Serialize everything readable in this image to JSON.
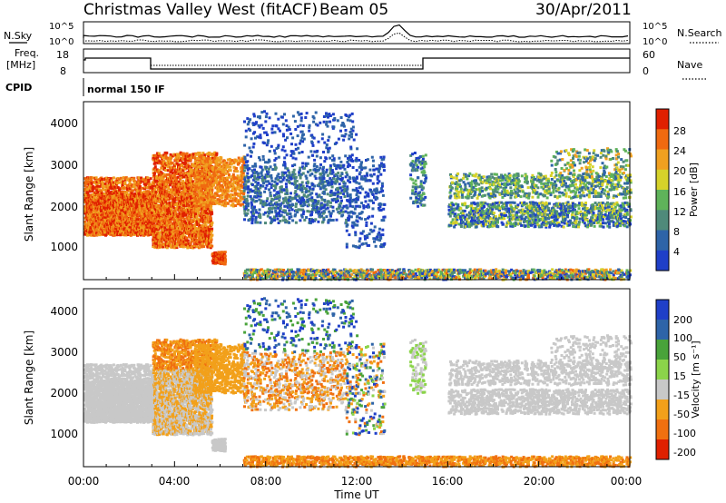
{
  "header": {
    "title": "Christmas Valley West (fitACF)",
    "beam": "Beam 05",
    "date": "30/Apr/2011"
  },
  "top_panels": {
    "nsky_label": "N.Sky",
    "nsearch_label": "N.Search",
    "noise_ticks": [
      "10^5",
      "10^0"
    ],
    "freq_label_1": "Freq.",
    "freq_label_2": "[MHz]",
    "freq_ticks": [
      "18",
      "8"
    ],
    "nave_label": "Nave",
    "nave_ticks": [
      "60",
      "0"
    ],
    "cpid_label": "CPID",
    "cpid_value": "normal 150 IF"
  },
  "colors": {
    "power_scale": [
      "#1f3fc8",
      "#2e64a8",
      "#4f8a7a",
      "#5fb35a",
      "#d6d22a",
      "#f0a020",
      "#f06a10",
      "#e02000"
    ],
    "velocity_scale": [
      "#1f3fc8",
      "#2e64a8",
      "#49a33a",
      "#8bd44a",
      "#c8c8c8",
      "#f2a01a",
      "#f07010",
      "#e02000"
    ]
  },
  "chart_data": [
    {
      "type": "heatmap",
      "name": "power-panel",
      "ylabel": "Slant Range [km]",
      "yticks": [
        "4000",
        "3000",
        "2000",
        "1000"
      ],
      "ylim": [
        200,
        4500
      ],
      "xlim_hours": [
        0,
        24
      ],
      "colorbar_label": "Power [dB]",
      "colorbar_ticks": [
        "28",
        "24",
        "20",
        "16",
        "12",
        "8",
        "4"
      ],
      "colorbar_range": [
        0,
        32
      ]
    },
    {
      "type": "heatmap",
      "name": "velocity-panel",
      "ylabel": "Slant Range [km]",
      "yticks": [
        "4000",
        "3000",
        "2000",
        "1000"
      ],
      "ylim": [
        200,
        4500
      ],
      "xlim_hours": [
        0,
        24
      ],
      "colorbar_label": "Velocity [m s⁻¹]",
      "colorbar_ticks": [
        "200",
        "100",
        "50",
        "15",
        "-15",
        "-50",
        "-100",
        "-200"
      ]
    }
  ],
  "xaxis": {
    "ticks": [
      "00:00",
      "04:00",
      "08:00",
      "12:00",
      "16:00",
      "20:00",
      "00:00"
    ],
    "label": "Time UT"
  }
}
